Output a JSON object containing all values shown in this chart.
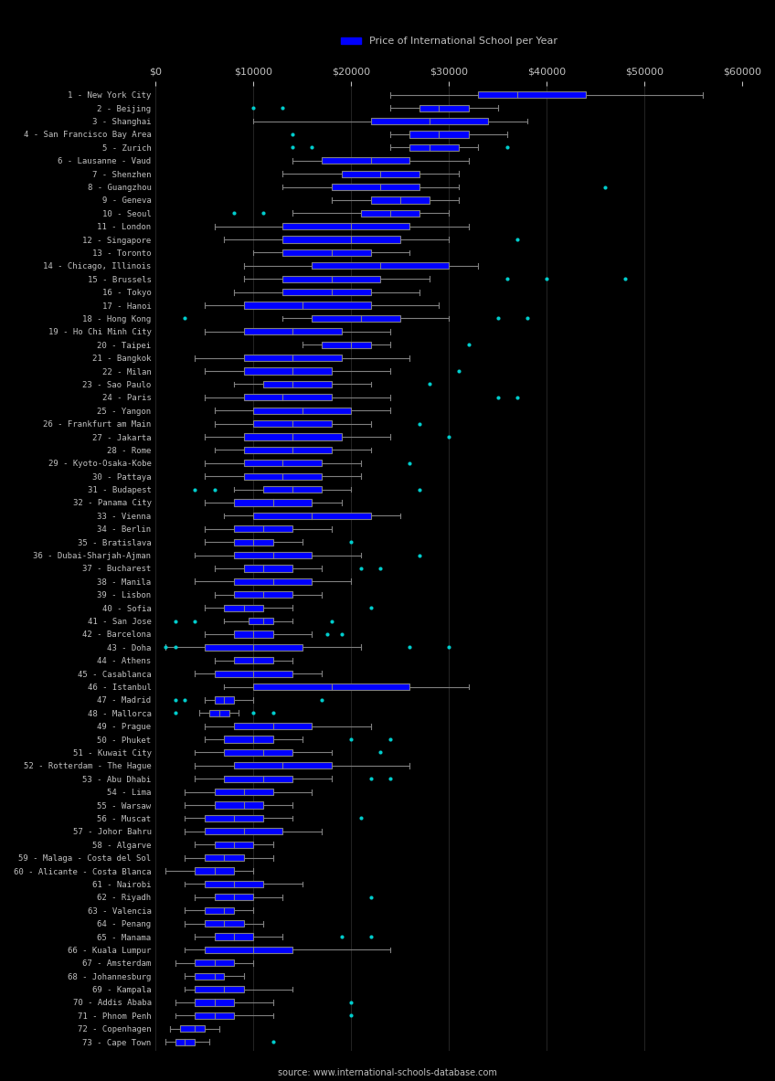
{
  "title": "Price of International School per Year",
  "source": "source: www.international-schools-database.com",
  "xlim": [
    0,
    60000
  ],
  "xticks": [
    0,
    10000,
    20000,
    30000,
    40000,
    50000,
    60000
  ],
  "xticklabels": [
    "$0",
    "$10000",
    "$20000",
    "$30000",
    "$40000",
    "$50000",
    "$60000"
  ],
  "box_color": "#0000ff",
  "whisker_color": "#808080",
  "median_color": "#808080",
  "flier_color": "#00cccc",
  "background_color": "#000000",
  "text_color": "#c0c0c0",
  "cities": [
    "1 - New York City",
    "2 - Beijing",
    "3 - Shanghai",
    "4 - San Francisco Bay Area",
    "5 - Zurich",
    "6 - Lausanne - Vaud",
    "7 - Shenzhen",
    "8 - Guangzhou",
    "9 - Geneva",
    "10 - Seoul",
    "11 - London",
    "12 - Singapore",
    "13 - Toronto",
    "14 - Chicago, Illinois",
    "15 - Brussels",
    "16 - Tokyo",
    "17 - Hanoi",
    "18 - Hong Kong",
    "19 - Ho Chi Minh City",
    "20 - Taipei",
    "21 - Bangkok",
    "22 - Milan",
    "23 - Sao Paulo",
    "24 - Paris",
    "25 - Yangon",
    "26 - Frankfurt am Main",
    "27 - Jakarta",
    "28 - Rome",
    "29 - Kyoto-Osaka-Kobe",
    "30 - Pattaya",
    "31 - Budapest",
    "32 - Panama City",
    "33 - Vienna",
    "34 - Berlin",
    "35 - Bratislava",
    "36 - Dubai-Sharjah-Ajman",
    "37 - Bucharest",
    "38 - Manila",
    "39 - Lisbon",
    "40 - Sofia",
    "41 - San Jose",
    "42 - Barcelona",
    "43 - Doha",
    "44 - Athens",
    "45 - Casablanca",
    "46 - Istanbul",
    "47 - Madrid",
    "48 - Mallorca",
    "49 - Prague",
    "50 - Phuket",
    "51 - Kuwait City",
    "52 - Rotterdam - The Hague",
    "53 - Abu Dhabi",
    "54 - Lima",
    "55 - Warsaw",
    "56 - Muscat",
    "57 - Johor Bahru",
    "58 - Algarve",
    "59 - Malaga - Costa del Sol",
    "60 - Alicante - Costa Blanca",
    "61 - Nairobi",
    "62 - Riyadh",
    "63 - Valencia",
    "64 - Penang",
    "65 - Manama",
    "66 - Kuala Lumpur",
    "67 - Amsterdam",
    "68 - Johannesburg",
    "69 - Kampala",
    "70 - Addis Ababa",
    "71 - Phnom Penh",
    "72 - Copenhagen",
    "73 - Cape Town"
  ],
  "boxes": [
    {
      "q1": 33000,
      "median": 37000,
      "q3": 44000,
      "whislo": 24000,
      "whishi": 56000,
      "fliers": []
    },
    {
      "q1": 27000,
      "median": 29000,
      "q3": 32000,
      "whislo": 24000,
      "whishi": 35000,
      "fliers": [
        10000,
        13000
      ]
    },
    {
      "q1": 22000,
      "median": 28000,
      "q3": 34000,
      "whislo": 10000,
      "whishi": 38000,
      "fliers": []
    },
    {
      "q1": 26000,
      "median": 29000,
      "q3": 32000,
      "whislo": 24000,
      "whishi": 36000,
      "fliers": [
        14000
      ]
    },
    {
      "q1": 26000,
      "median": 28000,
      "q3": 31000,
      "whislo": 24000,
      "whishi": 33000,
      "fliers": [
        14000,
        16000,
        36000
      ]
    },
    {
      "q1": 17000,
      "median": 22000,
      "q3": 26000,
      "whislo": 14000,
      "whishi": 32000,
      "fliers": []
    },
    {
      "q1": 19000,
      "median": 23000,
      "q3": 27000,
      "whislo": 13000,
      "whishi": 31000,
      "fliers": []
    },
    {
      "q1": 18000,
      "median": 23000,
      "q3": 27000,
      "whislo": 13000,
      "whishi": 31000,
      "fliers": [
        46000
      ]
    },
    {
      "q1": 22000,
      "median": 25000,
      "q3": 28000,
      "whislo": 18000,
      "whishi": 31000,
      "fliers": []
    },
    {
      "q1": 21000,
      "median": 24000,
      "q3": 27000,
      "whislo": 14000,
      "whishi": 30000,
      "fliers": [
        8000,
        11000
      ]
    },
    {
      "q1": 13000,
      "median": 20000,
      "q3": 26000,
      "whislo": 6000,
      "whishi": 32000,
      "fliers": []
    },
    {
      "q1": 13000,
      "median": 20000,
      "q3": 25000,
      "whislo": 7000,
      "whishi": 30000,
      "fliers": [
        37000
      ]
    },
    {
      "q1": 13000,
      "median": 18000,
      "q3": 22000,
      "whislo": 10000,
      "whishi": 26000,
      "fliers": []
    },
    {
      "q1": 16000,
      "median": 23000,
      "q3": 30000,
      "whislo": 9000,
      "whishi": 33000,
      "fliers": []
    },
    {
      "q1": 13000,
      "median": 18000,
      "q3": 23000,
      "whislo": 9000,
      "whishi": 28000,
      "fliers": [
        36000,
        40000,
        48000
      ]
    },
    {
      "q1": 13000,
      "median": 18000,
      "q3": 22000,
      "whislo": 8000,
      "whishi": 27000,
      "fliers": []
    },
    {
      "q1": 9000,
      "median": 15000,
      "q3": 22000,
      "whislo": 5000,
      "whishi": 29000,
      "fliers": []
    },
    {
      "q1": 16000,
      "median": 21000,
      "q3": 25000,
      "whislo": 13000,
      "whishi": 30000,
      "fliers": [
        3000,
        35000,
        38000
      ]
    },
    {
      "q1": 9000,
      "median": 14000,
      "q3": 19000,
      "whislo": 5000,
      "whishi": 24000,
      "fliers": []
    },
    {
      "q1": 17000,
      "median": 20000,
      "q3": 22000,
      "whislo": 15000,
      "whishi": 24000,
      "fliers": [
        32000
      ]
    },
    {
      "q1": 9000,
      "median": 14000,
      "q3": 19000,
      "whislo": 4000,
      "whishi": 26000,
      "fliers": []
    },
    {
      "q1": 9000,
      "median": 14000,
      "q3": 18000,
      "whislo": 5000,
      "whishi": 24000,
      "fliers": [
        31000
      ]
    },
    {
      "q1": 11000,
      "median": 14000,
      "q3": 18000,
      "whislo": 8000,
      "whishi": 22000,
      "fliers": [
        28000
      ]
    },
    {
      "q1": 9000,
      "median": 13000,
      "q3": 18000,
      "whislo": 5000,
      "whishi": 24000,
      "fliers": [
        35000,
        37000
      ]
    },
    {
      "q1": 10000,
      "median": 15000,
      "q3": 20000,
      "whislo": 6000,
      "whishi": 24000,
      "fliers": []
    },
    {
      "q1": 10000,
      "median": 14000,
      "q3": 18000,
      "whislo": 6000,
      "whishi": 22000,
      "fliers": [
        27000
      ]
    },
    {
      "q1": 9000,
      "median": 14000,
      "q3": 19000,
      "whislo": 5000,
      "whishi": 24000,
      "fliers": [
        30000
      ]
    },
    {
      "q1": 9000,
      "median": 14000,
      "q3": 18000,
      "whislo": 6000,
      "whishi": 22000,
      "fliers": []
    },
    {
      "q1": 9000,
      "median": 13000,
      "q3": 17000,
      "whislo": 5000,
      "whishi": 21000,
      "fliers": [
        26000
      ]
    },
    {
      "q1": 9000,
      "median": 13000,
      "q3": 17000,
      "whislo": 5000,
      "whishi": 21000,
      "fliers": []
    },
    {
      "q1": 11000,
      "median": 14000,
      "q3": 17000,
      "whislo": 8000,
      "whishi": 20000,
      "fliers": [
        4000,
        6000,
        27000
      ]
    },
    {
      "q1": 8000,
      "median": 12000,
      "q3": 16000,
      "whislo": 5000,
      "whishi": 19000,
      "fliers": []
    },
    {
      "q1": 10000,
      "median": 16000,
      "q3": 22000,
      "whislo": 7000,
      "whishi": 25000,
      "fliers": []
    },
    {
      "q1": 8000,
      "median": 11000,
      "q3": 14000,
      "whislo": 5000,
      "whishi": 18000,
      "fliers": []
    },
    {
      "q1": 8000,
      "median": 10000,
      "q3": 12000,
      "whislo": 5000,
      "whishi": 15000,
      "fliers": [
        20000
      ]
    },
    {
      "q1": 8000,
      "median": 12000,
      "q3": 16000,
      "whislo": 4000,
      "whishi": 21000,
      "fliers": [
        27000
      ]
    },
    {
      "q1": 9000,
      "median": 11000,
      "q3": 14000,
      "whislo": 6000,
      "whishi": 17000,
      "fliers": [
        21000,
        23000
      ]
    },
    {
      "q1": 8000,
      "median": 12000,
      "q3": 16000,
      "whislo": 4000,
      "whishi": 20000,
      "fliers": []
    },
    {
      "q1": 8000,
      "median": 11000,
      "q3": 14000,
      "whislo": 6000,
      "whishi": 17000,
      "fliers": []
    },
    {
      "q1": 7000,
      "median": 9000,
      "q3": 11000,
      "whislo": 5000,
      "whishi": 14000,
      "fliers": [
        22000
      ]
    },
    {
      "q1": 9500,
      "median": 11000,
      "q3": 12000,
      "whislo": 7000,
      "whishi": 14000,
      "fliers": [
        2000,
        4000,
        18000
      ]
    },
    {
      "q1": 8000,
      "median": 10000,
      "q3": 12000,
      "whislo": 5000,
      "whishi": 16000,
      "fliers": [
        17500,
        19000
      ]
    },
    {
      "q1": 5000,
      "median": 10000,
      "q3": 15000,
      "whislo": 1000,
      "whishi": 21000,
      "fliers": [
        1000,
        2000,
        26000,
        30000
      ]
    },
    {
      "q1": 8000,
      "median": 10000,
      "q3": 12000,
      "whislo": 6000,
      "whishi": 14000,
      "fliers": []
    },
    {
      "q1": 6000,
      "median": 10000,
      "q3": 14000,
      "whislo": 4000,
      "whishi": 17000,
      "fliers": []
    },
    {
      "q1": 10000,
      "median": 18000,
      "q3": 26000,
      "whislo": 7000,
      "whishi": 32000,
      "fliers": []
    },
    {
      "q1": 6000,
      "median": 7000,
      "q3": 8000,
      "whislo": 5000,
      "whishi": 10000,
      "fliers": [
        2000,
        3000,
        17000
      ]
    },
    {
      "q1": 5500,
      "median": 6500,
      "q3": 7500,
      "whislo": 4500,
      "whishi": 8500,
      "fliers": [
        2000,
        10000,
        12000
      ]
    },
    {
      "q1": 8000,
      "median": 12000,
      "q3": 16000,
      "whislo": 5000,
      "whishi": 22000,
      "fliers": []
    },
    {
      "q1": 7000,
      "median": 10000,
      "q3": 12000,
      "whislo": 5000,
      "whishi": 15000,
      "fliers": [
        20000,
        24000
      ]
    },
    {
      "q1": 7000,
      "median": 11000,
      "q3": 14000,
      "whislo": 4000,
      "whishi": 18000,
      "fliers": [
        23000
      ]
    },
    {
      "q1": 8000,
      "median": 13000,
      "q3": 18000,
      "whislo": 4000,
      "whishi": 26000,
      "fliers": []
    },
    {
      "q1": 7000,
      "median": 11000,
      "q3": 14000,
      "whislo": 4000,
      "whishi": 18000,
      "fliers": [
        22000,
        24000
      ]
    },
    {
      "q1": 6000,
      "median": 9000,
      "q3": 12000,
      "whislo": 3000,
      "whishi": 16000,
      "fliers": []
    },
    {
      "q1": 6000,
      "median": 9000,
      "q3": 11000,
      "whislo": 3000,
      "whishi": 14000,
      "fliers": []
    },
    {
      "q1": 5000,
      "median": 8000,
      "q3": 11000,
      "whislo": 3000,
      "whishi": 14000,
      "fliers": [
        21000
      ]
    },
    {
      "q1": 5000,
      "median": 9000,
      "q3": 13000,
      "whislo": 3000,
      "whishi": 17000,
      "fliers": []
    },
    {
      "q1": 6000,
      "median": 8000,
      "q3": 10000,
      "whislo": 4000,
      "whishi": 12000,
      "fliers": []
    },
    {
      "q1": 5000,
      "median": 7000,
      "q3": 9000,
      "whislo": 3000,
      "whishi": 12000,
      "fliers": []
    },
    {
      "q1": 4000,
      "median": 6000,
      "q3": 8000,
      "whislo": 1000,
      "whishi": 10000,
      "fliers": []
    },
    {
      "q1": 5000,
      "median": 8000,
      "q3": 11000,
      "whislo": 3000,
      "whishi": 15000,
      "fliers": []
    },
    {
      "q1": 6000,
      "median": 8000,
      "q3": 10000,
      "whislo": 4000,
      "whishi": 13000,
      "fliers": [
        22000
      ]
    },
    {
      "q1": 5000,
      "median": 7000,
      "q3": 8000,
      "whislo": 3000,
      "whishi": 10000,
      "fliers": []
    },
    {
      "q1": 5000,
      "median": 7000,
      "q3": 9000,
      "whislo": 3000,
      "whishi": 11000,
      "fliers": []
    },
    {
      "q1": 6000,
      "median": 8000,
      "q3": 10000,
      "whislo": 4000,
      "whishi": 13000,
      "fliers": [
        19000,
        22000
      ]
    },
    {
      "q1": 5000,
      "median": 10000,
      "q3": 14000,
      "whislo": 3000,
      "whishi": 24000,
      "fliers": []
    },
    {
      "q1": 4000,
      "median": 6000,
      "q3": 8000,
      "whislo": 2000,
      "whishi": 10000,
      "fliers": []
    },
    {
      "q1": 4000,
      "median": 6000,
      "q3": 7000,
      "whislo": 3000,
      "whishi": 9000,
      "fliers": []
    },
    {
      "q1": 4000,
      "median": 7000,
      "q3": 9000,
      "whislo": 3000,
      "whishi": 14000,
      "fliers": []
    },
    {
      "q1": 4000,
      "median": 6000,
      "q3": 8000,
      "whislo": 2000,
      "whishi": 12000,
      "fliers": [
        20000
      ]
    },
    {
      "q1": 4000,
      "median": 6000,
      "q3": 8000,
      "whislo": 2000,
      "whishi": 12000,
      "fliers": [
        20000
      ]
    },
    {
      "q1": 2500,
      "median": 4000,
      "q3": 5000,
      "whislo": 1500,
      "whishi": 6500,
      "fliers": []
    },
    {
      "q1": 2000,
      "median": 3000,
      "q3": 4000,
      "whislo": 1000,
      "whishi": 5500,
      "fliers": [
        12000
      ]
    }
  ]
}
